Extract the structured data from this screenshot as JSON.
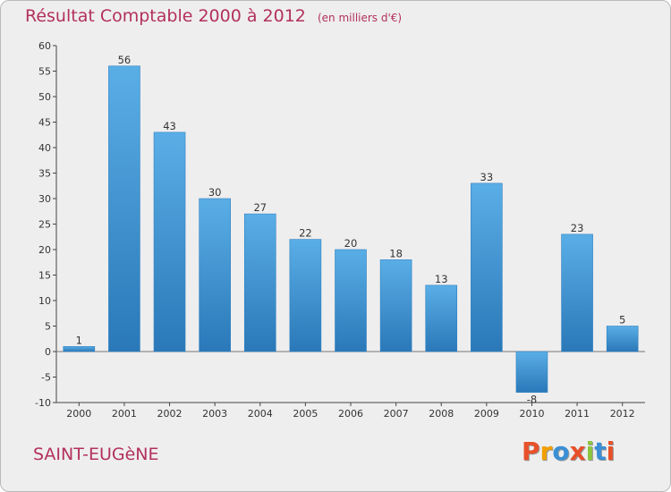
{
  "header": {
    "title": "Résultat Comptable 2000 à 2012",
    "subtitle": "(en milliers d'€)"
  },
  "footer": {
    "commune": "SAINT-EUGèNE",
    "brand": "Proxiti"
  },
  "colors": {
    "title": "#b3305e",
    "bar_light": "#5aaee6",
    "bar_dark": "#2a78b8",
    "background": "#eeeeee",
    "brand_letters": [
      "#e8502a",
      "#f2a000",
      "#3a8fd6",
      "#e8502a",
      "#8dc63f",
      "#3a8fd6",
      "#e8502a"
    ]
  },
  "chart_data": {
    "type": "bar",
    "title": "Résultat Comptable 2000 à 2012",
    "subtitle": "(en milliers d'€)",
    "categories": [
      "2000",
      "2001",
      "2002",
      "2003",
      "2004",
      "2005",
      "2006",
      "2007",
      "2008",
      "2009",
      "2010",
      "2011",
      "2012"
    ],
    "values": [
      1,
      56,
      43,
      30,
      27,
      22,
      20,
      18,
      13,
      33,
      -8,
      23,
      5
    ],
    "ylim": [
      -10,
      60
    ],
    "yticks": [
      -10,
      -5,
      0,
      5,
      10,
      15,
      20,
      25,
      30,
      35,
      40,
      45,
      50,
      55,
      60
    ],
    "grid": false,
    "legend": "none"
  }
}
